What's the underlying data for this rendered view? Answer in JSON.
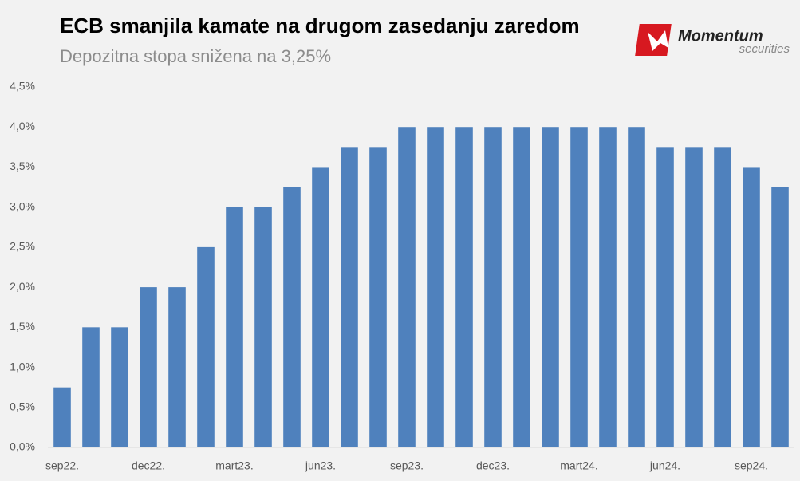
{
  "chart_data": {
    "type": "bar",
    "title": "ECB smanjila kamate na drugom zasedanju zaredom",
    "subtitle": "Depozitna stopa snižena na 3,25%",
    "categories": [
      "sep22.",
      null,
      null,
      "dec22.",
      null,
      null,
      "mart23.",
      null,
      null,
      "jun23.",
      null,
      null,
      "sep23.",
      null,
      null,
      "dec23.",
      null,
      null,
      "mart24.",
      null,
      null,
      "jun24.",
      null,
      null,
      "sep24.",
      null
    ],
    "values": [
      0.75,
      1.5,
      1.5,
      2.0,
      2.0,
      2.5,
      3.0,
      3.0,
      3.25,
      3.5,
      3.75,
      3.75,
      4.0,
      4.0,
      4.0,
      4.0,
      4.0,
      4.0,
      4.0,
      4.0,
      4.0,
      3.75,
      3.75,
      3.75,
      3.5,
      3.25
    ],
    "color": "#4f81bd",
    "ylim": [
      0,
      4.5
    ],
    "yticks": [
      {
        "value": 0,
        "label": "0,0%"
      },
      {
        "value": 0.5,
        "label": "0,5%"
      },
      {
        "value": 1,
        "label": "1,0%"
      },
      {
        "value": 1.5,
        "label": "1,5%"
      },
      {
        "value": 2,
        "label": "2,0%"
      },
      {
        "value": 2.5,
        "label": "2,5%"
      },
      {
        "value": 3,
        "label": "3,0%"
      },
      {
        "value": 3.5,
        "label": "3,5%"
      },
      {
        "value": 4,
        "label": "4,0%"
      },
      {
        "value": 4.5,
        "label": "4,5%"
      }
    ],
    "grid": false
  },
  "logo": {
    "name": "Momentum",
    "tagline": "securities"
  }
}
